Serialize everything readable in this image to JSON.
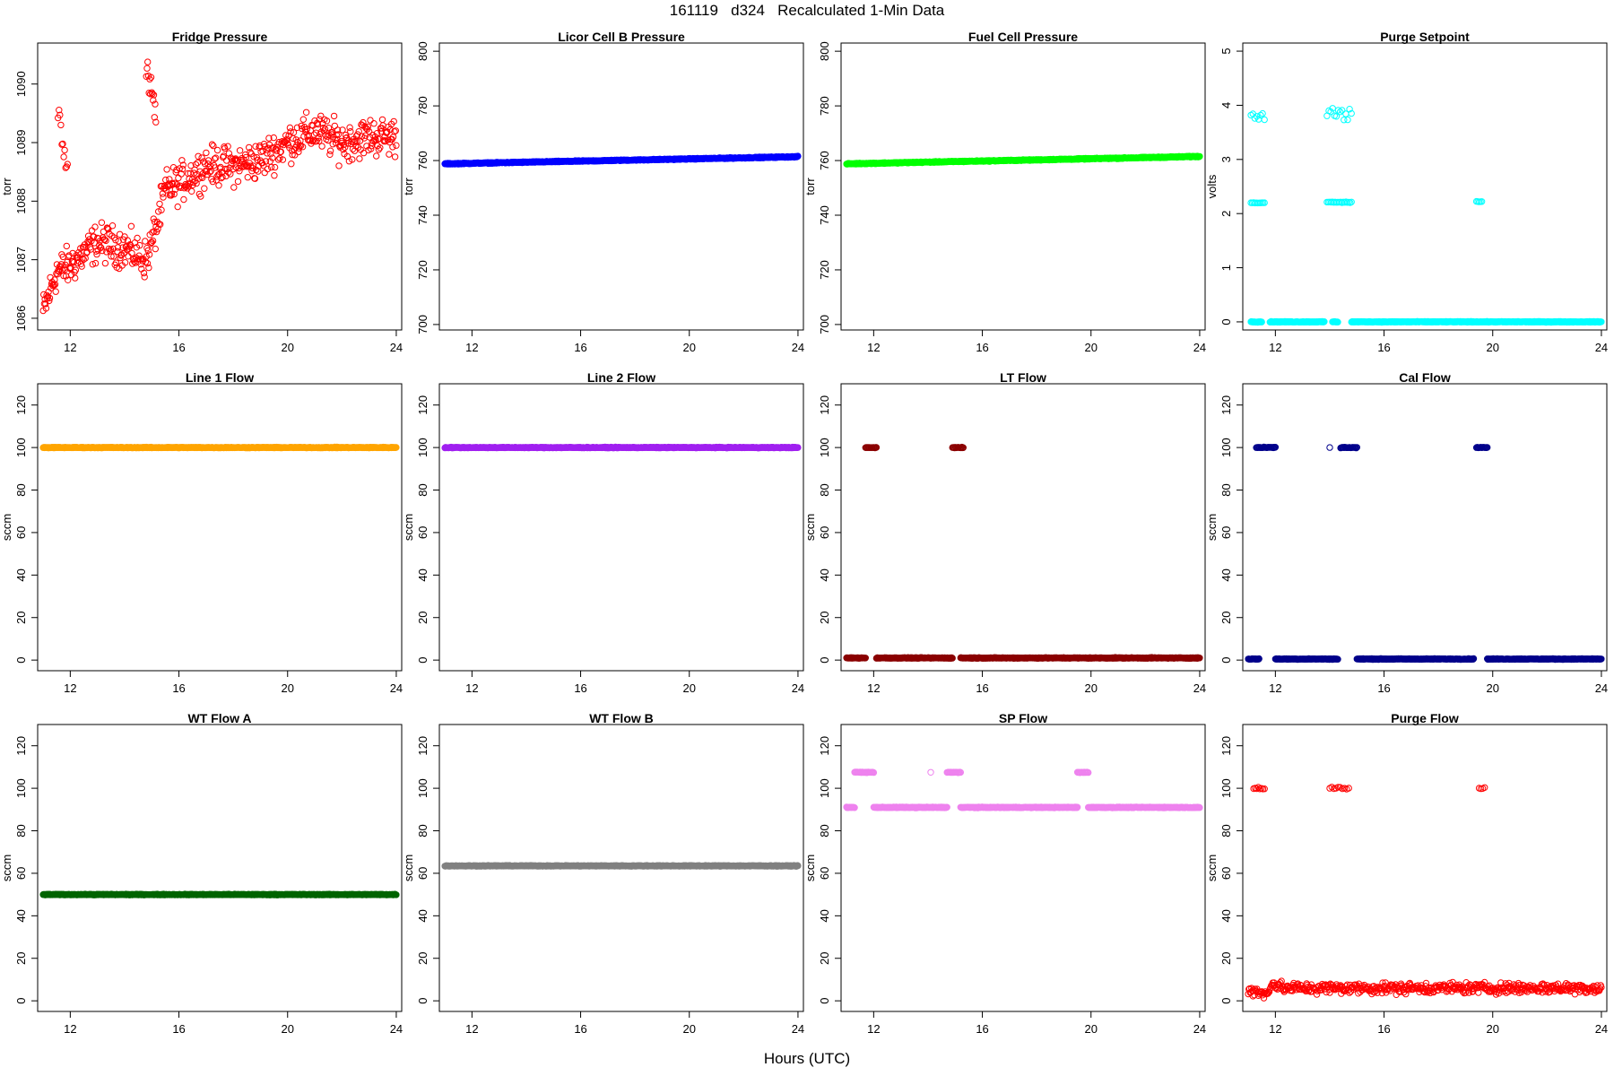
{
  "title": "161119   d324   Recalculated 1-Min Data",
  "xlabel": "Hours (UTC)",
  "chart_data": [
    {
      "type": "scatter",
      "title": "Fridge Pressure",
      "ylabel": "torr",
      "color": "#ff0000",
      "marker": "open-circle",
      "xlim": [
        10.8,
        24.2
      ],
      "ylim": [
        1085.8,
        1090.7
      ],
      "xticks": [
        12,
        16,
        20,
        24
      ],
      "yticks": [
        1086,
        1087,
        1088,
        1089,
        1090
      ],
      "series": [
        {
          "pattern": "noisy",
          "trend": [
            [
              11.0,
              1086.1
            ],
            [
              11.5,
              1086.8
            ],
            [
              12.0,
              1086.9
            ],
            [
              13.0,
              1087.3
            ],
            [
              14.0,
              1087.2
            ],
            [
              14.8,
              1087.0
            ],
            [
              15.2,
              1087.6
            ],
            [
              15.5,
              1088.2
            ],
            [
              16.0,
              1088.3
            ],
            [
              17.0,
              1088.6
            ],
            [
              18.0,
              1088.6
            ],
            [
              19.0,
              1088.7
            ],
            [
              20.0,
              1089.0
            ],
            [
              21.0,
              1089.2
            ],
            [
              22.0,
              1089.0
            ],
            [
              23.0,
              1089.1
            ],
            [
              24.0,
              1089.1
            ]
          ],
          "noise": 0.28,
          "density": 45
        },
        {
          "pattern": "noisy",
          "trend": [
            [
              11.55,
              1089.6
            ],
            [
              11.75,
              1089.0
            ],
            [
              11.9,
              1088.5
            ]
          ],
          "noise": 0.2,
          "density": 30
        },
        {
          "pattern": "noisy",
          "trend": [
            [
              14.8,
              1090.2
            ],
            [
              15.0,
              1089.8
            ],
            [
              15.15,
              1089.5
            ]
          ],
          "noise": 0.25,
          "density": 40
        }
      ]
    },
    {
      "type": "scatter",
      "title": "Licor Cell B Pressure",
      "ylabel": "torr",
      "color": "#0000ff",
      "marker": "open-circle",
      "xlim": [
        10.8,
        24.2
      ],
      "ylim": [
        698,
        803
      ],
      "xticks": [
        12,
        16,
        20,
        24
      ],
      "yticks": [
        700,
        720,
        740,
        760,
        780,
        800
      ],
      "series": [
        {
          "pattern": "line",
          "from": [
            11.0,
            758.8
          ],
          "to": [
            24.0,
            761.4
          ],
          "density": 60
        }
      ]
    },
    {
      "type": "scatter",
      "title": "Fuel Cell Pressure",
      "ylabel": "torr",
      "color": "#00ff00",
      "marker": "open-circle",
      "xlim": [
        10.8,
        24.2
      ],
      "ylim": [
        698,
        803
      ],
      "xticks": [
        12,
        16,
        20,
        24
      ],
      "yticks": [
        700,
        720,
        740,
        760,
        780,
        800
      ],
      "series": [
        {
          "pattern": "line",
          "from": [
            11.0,
            758.8
          ],
          "to": [
            24.0,
            761.5
          ],
          "density": 60
        }
      ]
    },
    {
      "type": "scatter",
      "title": "Purge Setpoint",
      "ylabel": "volts",
      "color": "#00ffff",
      "marker": "open-circle",
      "xlim": [
        10.8,
        24.2
      ],
      "ylim": [
        -0.15,
        5.15
      ],
      "xticks": [
        12,
        16,
        20,
        24
      ],
      "yticks": [
        0,
        1,
        2,
        3,
        4,
        5
      ],
      "series": [
        {
          "pattern": "segments",
          "segments": [
            [
              11.1,
              11.5,
              0
            ],
            [
              11.8,
              13.8,
              0
            ],
            [
              14.1,
              14.3,
              0
            ],
            [
              14.8,
              24.0,
              0
            ]
          ],
          "density": 60
        },
        {
          "pattern": "cluster",
          "x": [
            11.1,
            11.6
          ],
          "y": 3.78,
          "spread": 0.1,
          "n": 8
        },
        {
          "pattern": "segments",
          "segments": [
            [
              11.1,
              11.6,
              2.2
            ]
          ],
          "density": 20
        },
        {
          "pattern": "cluster",
          "x": [
            13.9,
            14.8
          ],
          "y": 3.85,
          "spread": 0.12,
          "n": 14
        },
        {
          "pattern": "segments",
          "segments": [
            [
              13.9,
              14.8,
              2.21
            ]
          ],
          "density": 20
        },
        {
          "pattern": "segments",
          "segments": [
            [
              19.4,
              19.6,
              2.22
            ]
          ],
          "density": 20
        }
      ]
    },
    {
      "type": "scatter",
      "title": "Line 1 Flow",
      "ylabel": "sccm",
      "color": "#ffa500",
      "marker": "open-circle",
      "xlim": [
        10.8,
        24.2
      ],
      "ylim": [
        -5,
        130
      ],
      "xticks": [
        12,
        16,
        20,
        24
      ],
      "yticks": [
        0,
        20,
        40,
        60,
        80,
        100,
        120
      ],
      "series": [
        {
          "pattern": "segments",
          "segments": [
            [
              11.0,
              24.0,
              100
            ]
          ],
          "density": 60
        }
      ]
    },
    {
      "type": "scatter",
      "title": "Line 2 Flow",
      "ylabel": "sccm",
      "color": "#a020f0",
      "marker": "open-circle",
      "xlim": [
        10.8,
        24.2
      ],
      "ylim": [
        -5,
        130
      ],
      "xticks": [
        12,
        16,
        20,
        24
      ],
      "yticks": [
        0,
        20,
        40,
        60,
        80,
        100,
        120
      ],
      "series": [
        {
          "pattern": "segments",
          "segments": [
            [
              11.0,
              24.0,
              100
            ]
          ],
          "density": 60
        }
      ]
    },
    {
      "type": "scatter",
      "title": "LT Flow",
      "ylabel": "sccm",
      "color": "#8b0000",
      "marker": "open-circle",
      "xlim": [
        10.8,
        24.2
      ],
      "ylim": [
        -5,
        130
      ],
      "xticks": [
        12,
        16,
        20,
        24
      ],
      "yticks": [
        0,
        20,
        40,
        60,
        80,
        100,
        120
      ],
      "series": [
        {
          "pattern": "segments",
          "segments": [
            [
              11.0,
              11.7,
              1
            ],
            [
              12.1,
              14.9,
              1
            ],
            [
              15.2,
              24.0,
              1
            ]
          ],
          "density": 60
        },
        {
          "pattern": "segments",
          "segments": [
            [
              11.7,
              12.1,
              100
            ],
            [
              14.9,
              15.3,
              100
            ]
          ],
          "density": 40
        }
      ]
    },
    {
      "type": "scatter",
      "title": "Cal Flow",
      "ylabel": "sccm",
      "color": "#00008b",
      "marker": "open-circle",
      "xlim": [
        10.8,
        24.2
      ],
      "ylim": [
        -5,
        130
      ],
      "xticks": [
        12,
        16,
        20,
        24
      ],
      "yticks": [
        0,
        20,
        40,
        60,
        80,
        100,
        120
      ],
      "series": [
        {
          "pattern": "segments",
          "segments": [
            [
              11.0,
              11.4,
              0.5
            ],
            [
              12.0,
              14.3,
              0.5
            ],
            [
              15.0,
              19.3,
              0.5
            ],
            [
              19.8,
              24.0,
              0.5
            ]
          ],
          "density": 60
        },
        {
          "pattern": "segments",
          "segments": [
            [
              11.3,
              12.0,
              100
            ],
            [
              14.4,
              15.0,
              100
            ],
            [
              19.4,
              19.8,
              100
            ]
          ],
          "density": 40
        },
        {
          "pattern": "cluster",
          "x": [
            14.0,
            14.0
          ],
          "y": 100,
          "spread": 0,
          "n": 1
        }
      ]
    },
    {
      "type": "scatter",
      "title": "WT Flow A",
      "ylabel": "sccm",
      "color": "#006400",
      "marker": "open-circle",
      "xlim": [
        10.8,
        24.2
      ],
      "ylim": [
        -5,
        130
      ],
      "xticks": [
        12,
        16,
        20,
        24
      ],
      "yticks": [
        0,
        20,
        40,
        60,
        80,
        100,
        120
      ],
      "series": [
        {
          "pattern": "segments",
          "segments": [
            [
              11.0,
              24.0,
              50
            ]
          ],
          "density": 60
        }
      ]
    },
    {
      "type": "scatter",
      "title": "WT Flow B",
      "ylabel": "sccm",
      "color": "#808080",
      "marker": "open-circle",
      "xlim": [
        10.8,
        24.2
      ],
      "ylim": [
        -5,
        130
      ],
      "xticks": [
        12,
        16,
        20,
        24
      ],
      "yticks": [
        0,
        20,
        40,
        60,
        80,
        100,
        120
      ],
      "series": [
        {
          "pattern": "segments",
          "segments": [
            [
              11.0,
              24.0,
              63.5
            ]
          ],
          "density": 60
        }
      ]
    },
    {
      "type": "scatter",
      "title": "SP Flow",
      "ylabel": "sccm",
      "color": "#ee82ee",
      "marker": "open-circle",
      "xlim": [
        10.8,
        24.2
      ],
      "ylim": [
        -5,
        130
      ],
      "xticks": [
        12,
        16,
        20,
        24
      ],
      "yticks": [
        0,
        20,
        40,
        60,
        80,
        100,
        120
      ],
      "series": [
        {
          "pattern": "segments",
          "segments": [
            [
              11.0,
              11.3,
              91
            ],
            [
              12.0,
              14.7,
              91
            ],
            [
              15.2,
              19.5,
              91
            ],
            [
              19.9,
              24.0,
              91
            ]
          ],
          "density": 60
        },
        {
          "pattern": "segments",
          "segments": [
            [
              11.3,
              12.0,
              107.5
            ],
            [
              14.7,
              15.2,
              107.5
            ],
            [
              19.5,
              19.9,
              107.5
            ]
          ],
          "density": 40
        },
        {
          "pattern": "cluster",
          "x": [
            14.1,
            14.1
          ],
          "y": 107.5,
          "spread": 0,
          "n": 1
        }
      ]
    },
    {
      "type": "scatter",
      "title": "Purge Flow",
      "ylabel": "sccm",
      "color": "#ff0000",
      "marker": "open-circle",
      "xlim": [
        10.8,
        24.2
      ],
      "ylim": [
        -5,
        130
      ],
      "xticks": [
        12,
        16,
        20,
        24
      ],
      "yticks": [
        0,
        20,
        40,
        60,
        80,
        100,
        120
      ],
      "series": [
        {
          "pattern": "noisy",
          "trend": [
            [
              11.0,
              5
            ],
            [
              11.6,
              3
            ],
            [
              11.9,
              8
            ],
            [
              12.3,
              6
            ],
            [
              14.0,
              6
            ],
            [
              15.0,
              6
            ],
            [
              24.0,
              6
            ]
          ],
          "noise": 2.2,
          "density": 40
        },
        {
          "pattern": "cluster",
          "x": [
            11.2,
            11.6
          ],
          "y": 100,
          "spread": 0.6,
          "n": 8
        },
        {
          "pattern": "cluster",
          "x": [
            14.0,
            14.7
          ],
          "y": 100,
          "spread": 0.6,
          "n": 10
        },
        {
          "pattern": "cluster",
          "x": [
            19.5,
            19.7
          ],
          "y": 100,
          "spread": 0.4,
          "n": 4
        }
      ]
    }
  ]
}
